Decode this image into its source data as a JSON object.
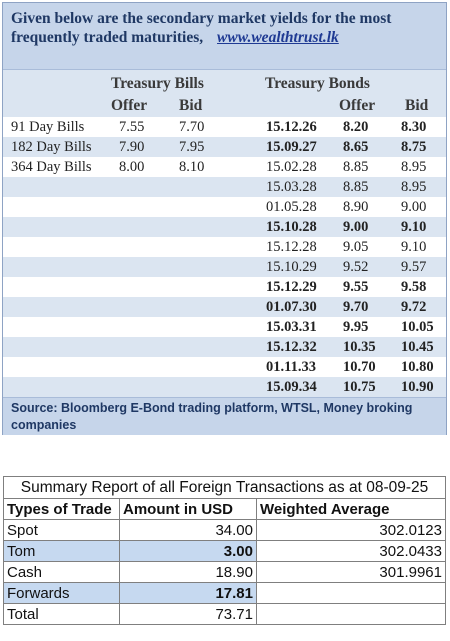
{
  "header": {
    "text": "Given below are the secondary market yields for the most frequently traded maturities,",
    "link": "www.wealthtrust.lk"
  },
  "treasury_bills": {
    "title": "Treasury Bills",
    "col_offer": "Offer",
    "col_bid": "Bid",
    "rows": [
      {
        "name": "91 Day Bills",
        "offer": "7.55",
        "bid": "7.70"
      },
      {
        "name": "182 Day Bills",
        "offer": "7.90",
        "bid": "7.95"
      },
      {
        "name": "364 Day Bills",
        "offer": "8.00",
        "bid": "8.10"
      }
    ]
  },
  "treasury_bonds": {
    "title": "Treasury Bonds",
    "col_offer": "Offer",
    "col_bid": "Bid",
    "rows": [
      {
        "maturity": "15.12.26",
        "offer": "8.20",
        "bid": "8.30",
        "bold": true
      },
      {
        "maturity": "15.09.27",
        "offer": "8.65",
        "bid": "8.75",
        "bold": true
      },
      {
        "maturity": "15.02.28",
        "offer": "8.85",
        "bid": "8.95",
        "bold": false
      },
      {
        "maturity": "15.03.28",
        "offer": "8.85",
        "bid": "8.95",
        "bold": false
      },
      {
        "maturity": "01.05.28",
        "offer": "8.90",
        "bid": "9.00",
        "bold": false
      },
      {
        "maturity": "15.10.28",
        "offer": "9.00",
        "bid": "9.10",
        "bold": true
      },
      {
        "maturity": "15.12.28",
        "offer": "9.05",
        "bid": "9.10",
        "bold": false
      },
      {
        "maturity": "15.10.29",
        "offer": "9.52",
        "bid": "9.57",
        "bold": false
      },
      {
        "maturity": "15.12.29",
        "offer": "9.55",
        "bid": "9.58",
        "bold": true
      },
      {
        "maturity": "01.07.30",
        "offer": "9.70",
        "bid": "9.72",
        "bold": true
      },
      {
        "maturity": "15.03.31",
        "offer": "9.95",
        "bid": "10.05",
        "bold": true
      },
      {
        "maturity": "15.12.32",
        "offer": "10.35",
        "bid": "10.45",
        "bold": true
      },
      {
        "maturity": "01.11.33",
        "offer": "10.70",
        "bid": "10.80",
        "bold": true
      },
      {
        "maturity": "15.09.34",
        "offer": "10.75",
        "bid": "10.90",
        "bold": true
      }
    ]
  },
  "source": "Source: Bloomberg E-Bond trading platform, WTSL, Money broking companies",
  "summary": {
    "title": "Summary Report of all Foreign Transactions as at 08-09-25",
    "headers": [
      "Types of Trade",
      "Amount in USD",
      "Weighted Average"
    ],
    "rows": [
      {
        "type": "Spot",
        "amount": "34.00",
        "avg": "302.0123",
        "shaded": false
      },
      {
        "type": "Tom",
        "amount": "3.00",
        "avg": "302.0433",
        "shaded": true
      },
      {
        "type": "Cash",
        "amount": "18.90",
        "avg": "301.9961",
        "shaded": false
      },
      {
        "type": "Forwards",
        "amount": "17.81",
        "avg": "",
        "shaded": true
      },
      {
        "type": "Total",
        "amount": "73.71",
        "avg": "",
        "shaded": false
      }
    ]
  }
}
